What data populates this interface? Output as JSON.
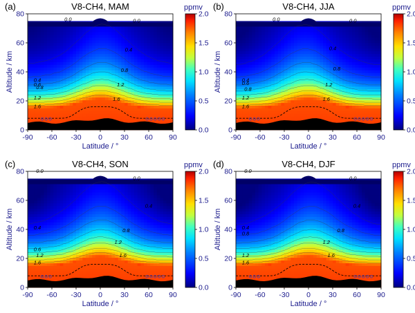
{
  "chart_data": [
    {
      "type": "heatmap",
      "panel_label": "(a)",
      "title": "V8-CH4, MAM",
      "xlabel": "Latitude / °",
      "ylabel": "Altitude / km",
      "xlim": [
        -90,
        90
      ],
      "ylim": [
        0,
        80
      ],
      "x_ticks": [
        -90,
        -60,
        -30,
        0,
        30,
        60,
        90
      ],
      "y_ticks": [
        0,
        20,
        40,
        60,
        80
      ],
      "colorbar": {
        "unit": "ppmv",
        "range": [
          0.0,
          2.0
        ],
        "ticks": [
          "0.0",
          "0.5",
          "1.0",
          "1.5",
          "2.0"
        ]
      },
      "contour_labels": [
        {
          "text": "0.0",
          "lat": -40,
          "alt": 75
        },
        {
          "text": "0.0",
          "lat": 45,
          "alt": 74
        },
        {
          "text": "0.4",
          "lat": 35,
          "alt": 54
        },
        {
          "text": "0.4",
          "lat": -78,
          "alt": 33
        },
        {
          "text": "0.6",
          "lat": -78,
          "alt": 30
        },
        {
          "text": "0.8",
          "lat": 30,
          "alt": 40
        },
        {
          "text": "0.8",
          "lat": -75,
          "alt": 28
        },
        {
          "text": "1.2",
          "lat": 25,
          "alt": 30
        },
        {
          "text": "1.2",
          "lat": -78,
          "alt": 21
        },
        {
          "text": "1.6",
          "lat": 20,
          "alt": 20
        },
        {
          "text": "1.6",
          "lat": -78,
          "alt": 15
        }
      ]
    },
    {
      "type": "heatmap",
      "panel_label": "(b)",
      "title": "V8-CH4, JJA",
      "xlabel": "Latitude / °",
      "ylabel": "Altitude / km",
      "xlim": [
        -90,
        90
      ],
      "ylim": [
        0,
        80
      ],
      "x_ticks": [
        -90,
        -60,
        -30,
        0,
        30,
        60,
        90
      ],
      "y_ticks": [
        0,
        20,
        40,
        60,
        80
      ],
      "colorbar": {
        "unit": "ppmv",
        "range": [
          0.0,
          2.0
        ],
        "ticks": [
          "0.0",
          "0.5",
          "1.0",
          "1.5",
          "2.0"
        ]
      },
      "contour_labels": [
        {
          "text": "0.0",
          "lat": -40,
          "alt": 75
        },
        {
          "text": "0.0",
          "lat": 55,
          "alt": 74
        },
        {
          "text": "0.4",
          "lat": 30,
          "alt": 55
        },
        {
          "text": "0.4",
          "lat": -78,
          "alt": 33
        },
        {
          "text": "0.6",
          "lat": -78,
          "alt": 31
        },
        {
          "text": "0.8",
          "lat": 35,
          "alt": 41
        },
        {
          "text": "0.8",
          "lat": -75,
          "alt": 27
        },
        {
          "text": "1.2",
          "lat": 25,
          "alt": 30
        },
        {
          "text": "1.2",
          "lat": -78,
          "alt": 21
        },
        {
          "text": "1.6",
          "lat": 22,
          "alt": 20
        },
        {
          "text": "1.6",
          "lat": -78,
          "alt": 15
        }
      ]
    },
    {
      "type": "heatmap",
      "panel_label": "(c)",
      "title": "V8-CH4, SON",
      "xlabel": "Latitude / °",
      "ylabel": "Altitude / km",
      "xlim": [
        -90,
        90
      ],
      "ylim": [
        0,
        80
      ],
      "x_ticks": [
        -90,
        -60,
        -30,
        0,
        30,
        60,
        90
      ],
      "y_ticks": [
        0,
        20,
        40,
        60,
        80
      ],
      "colorbar": {
        "unit": "ppmv",
        "range": [
          0.0,
          2.0
        ],
        "ticks": [
          "0.0",
          "0.5",
          "1.0",
          "1.5",
          "2.0"
        ]
      },
      "contour_labels": [
        {
          "text": "0.0",
          "lat": -75,
          "alt": 79
        },
        {
          "text": "0.0",
          "lat": 45,
          "alt": 74
        },
        {
          "text": "0.4",
          "lat": 60,
          "alt": 55
        },
        {
          "text": "0.4",
          "lat": -78,
          "alt": 40
        },
        {
          "text": "0.8",
          "lat": 32,
          "alt": 38
        },
        {
          "text": "0.6",
          "lat": -78,
          "alt": 25
        },
        {
          "text": "1.2",
          "lat": 22,
          "alt": 30
        },
        {
          "text": "1.2",
          "lat": -75,
          "alt": 21
        },
        {
          "text": "1.6",
          "lat": 28,
          "alt": 21
        },
        {
          "text": "1.6",
          "lat": -78,
          "alt": 16
        }
      ]
    },
    {
      "type": "heatmap",
      "panel_label": "(d)",
      "title": "V8-CH4, DJF",
      "xlabel": "Latitude / °",
      "ylabel": "Altitude / km",
      "xlim": [
        -90,
        90
      ],
      "ylim": [
        0,
        80
      ],
      "x_ticks": [
        -90,
        -60,
        -30,
        0,
        30,
        60,
        90
      ],
      "y_ticks": [
        0,
        20,
        40,
        60,
        80
      ],
      "colorbar": {
        "unit": "ppmv",
        "range": [
          0.0,
          2.0
        ],
        "ticks": [
          "0.0",
          "0.5",
          "1.0",
          "1.5",
          "2.0"
        ]
      },
      "contour_labels": [
        {
          "text": "0.0",
          "lat": -75,
          "alt": 79
        },
        {
          "text": "0.0",
          "lat": 55,
          "alt": 74
        },
        {
          "text": "0.4",
          "lat": 60,
          "alt": 55
        },
        {
          "text": "0.4",
          "lat": -78,
          "alt": 40
        },
        {
          "text": "0.8",
          "lat": -78,
          "alt": 36
        },
        {
          "text": "0.8",
          "lat": 40,
          "alt": 38
        },
        {
          "text": "1.2",
          "lat": 22,
          "alt": 30
        },
        {
          "text": "1.2",
          "lat": -78,
          "alt": 21
        },
        {
          "text": "1.6",
          "lat": 28,
          "alt": 21
        },
        {
          "text": "1.6",
          "lat": -78,
          "alt": 16
        }
      ]
    }
  ]
}
